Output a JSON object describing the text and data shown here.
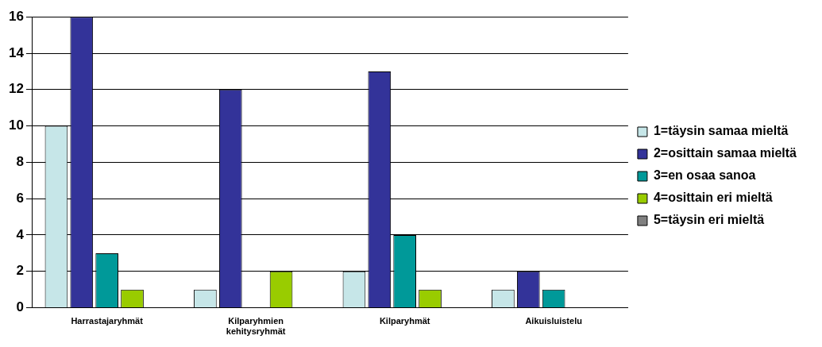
{
  "chart_data": {
    "type": "bar",
    "categories": [
      "Harrastajaryhmät",
      "Kilparyhmien kehitysryhmät",
      "Kilparyhmät",
      "Aikuisluistelu"
    ],
    "series": [
      {
        "name": "1=täysin samaa mieltä",
        "color": "#c6e6e8",
        "values": [
          10,
          1,
          2,
          1
        ]
      },
      {
        "name": "2=osittain samaa mieltä",
        "color": "#333399",
        "values": [
          16,
          12,
          13,
          2
        ]
      },
      {
        "name": "3=en osaa sanoa",
        "color": "#009999",
        "values": [
          3,
          0,
          4,
          1
        ]
      },
      {
        "name": "4=osittain eri mieltä",
        "color": "#99cc00",
        "values": [
          1,
          2,
          1,
          0
        ]
      },
      {
        "name": "5=täysin eri mieltä",
        "color": "#808080",
        "values": [
          0,
          0,
          0,
          0
        ]
      }
    ],
    "ylim": [
      0,
      16
    ],
    "yticks": [
      0,
      2,
      4,
      6,
      8,
      10,
      12,
      14,
      16
    ],
    "grid": "y",
    "legend": "right"
  }
}
